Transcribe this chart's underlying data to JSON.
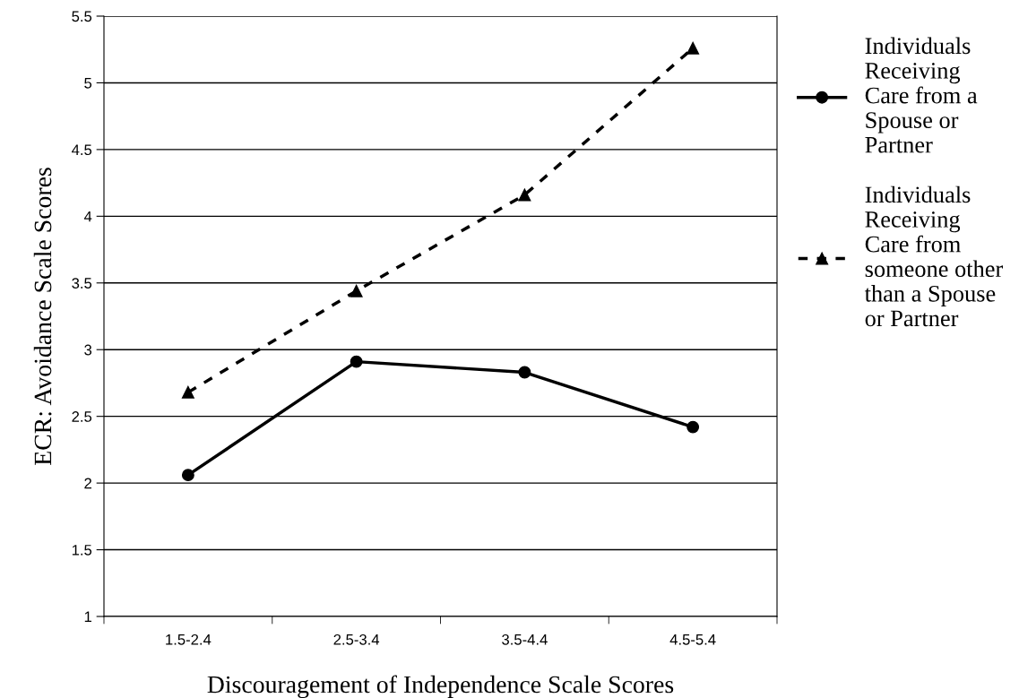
{
  "chart_data": {
    "type": "line",
    "xlabel": "Discouragement of Independence Scale Scores",
    "ylabel": "ECR: Avoidance Scale Scores",
    "categories": [
      "1.5-2.4",
      "2.5-3.4",
      "3.5-4.4",
      "4.5-5.4"
    ],
    "series": [
      {
        "name": "Individuals\nReceiving\nCare from a\nSpouse or\nPartner",
        "color": "#000000",
        "values": [
          2.06,
          2.91,
          2.83,
          2.42
        ],
        "marker": "circle",
        "line_style": "solid"
      },
      {
        "name": "Individuals\nReceiving\nCare from\nsomeone other\nthan a Spouse\nor Partner",
        "color": "#000000",
        "values": [
          2.68,
          3.44,
          4.16,
          5.26
        ],
        "marker": "triangle",
        "line_style": "dashed"
      }
    ],
    "ylim": [
      1,
      5.5
    ],
    "yticks": [
      1,
      1.5,
      2,
      2.5,
      3,
      3.5,
      4,
      4.5,
      5,
      5.5
    ],
    "grid": "y",
    "legend": "right"
  }
}
